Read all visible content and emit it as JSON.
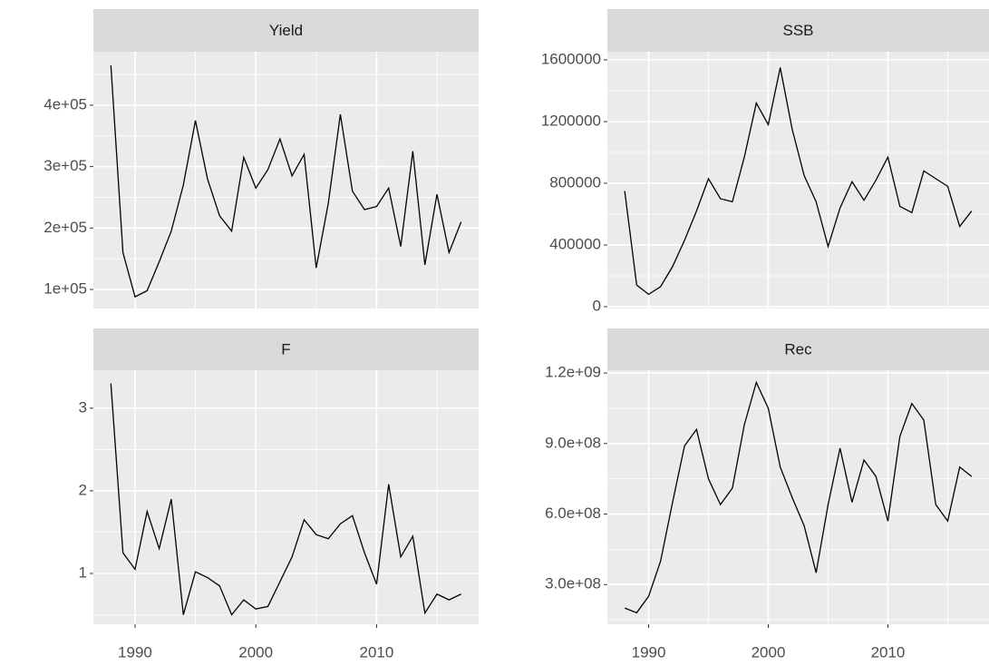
{
  "chart_data": [
    {
      "type": "line",
      "title": "Yield",
      "color": "#000000",
      "x": [
        1988,
        1989,
        1990,
        1991,
        1992,
        1993,
        1994,
        1995,
        1996,
        1997,
        1998,
        1999,
        2000,
        2001,
        2002,
        2003,
        2004,
        2005,
        2006,
        2007,
        2008,
        2009,
        2010,
        2011,
        2012,
        2013,
        2014,
        2015,
        2016,
        2017
      ],
      "values": [
        465000,
        160000,
        88000,
        98000,
        145000,
        195000,
        270000,
        375000,
        280000,
        220000,
        195000,
        315000,
        265000,
        295000,
        345000,
        285000,
        320000,
        135000,
        240000,
        385000,
        260000,
        230000,
        235000,
        265000,
        170000,
        325000,
        140000,
        255000,
        160000,
        210000
      ],
      "xlim": [
        1986.55,
        2018.45
      ],
      "xticks": [
        1990,
        2000,
        2010
      ],
      "ylim": [
        69000,
        487000
      ],
      "yticks": [
        {
          "value": 100000,
          "label": "1e+05"
        },
        {
          "value": 200000,
          "label": "2e+05"
        },
        {
          "value": 300000,
          "label": "3e+05"
        },
        {
          "value": 400000,
          "label": "4e+05"
        }
      ]
    },
    {
      "type": "line",
      "title": "SSB",
      "color": "#000000",
      "x": [
        1988,
        1989,
        1990,
        1991,
        1992,
        1993,
        1994,
        1995,
        1996,
        1997,
        1998,
        1999,
        2000,
        2001,
        2002,
        2003,
        2004,
        2005,
        2006,
        2007,
        2008,
        2009,
        2010,
        2011,
        2012,
        2013,
        2014,
        2015,
        2016,
        2017
      ],
      "values": [
        750000,
        140000,
        80000,
        130000,
        260000,
        430000,
        620000,
        830000,
        700000,
        680000,
        970000,
        1320000,
        1180000,
        1550000,
        1150000,
        850000,
        680000,
        390000,
        640000,
        810000,
        690000,
        820000,
        970000,
        650000,
        610000,
        880000,
        830000,
        780000,
        520000,
        620000
      ],
      "xlim": [
        1986.55,
        2018.45
      ],
      "xticks": [
        1990,
        2000,
        2010
      ],
      "ylim": [
        -12000,
        1653000
      ],
      "yticks": [
        0,
        400000,
        800000,
        1200000,
        1600000
      ]
    },
    {
      "type": "line",
      "title": "F",
      "color": "#000000",
      "x": [
        1988,
        1989,
        1990,
        1991,
        1992,
        1993,
        1994,
        1995,
        1996,
        1997,
        1998,
        1999,
        2000,
        2001,
        2002,
        2003,
        2004,
        2005,
        2006,
        2007,
        2008,
        2009,
        2010,
        2011,
        2012,
        2013,
        2014,
        2015,
        2016,
        2017
      ],
      "values": [
        3.3,
        1.25,
        1.05,
        1.75,
        1.3,
        1.9,
        0.5,
        1.02,
        0.95,
        0.85,
        0.5,
        0.68,
        0.57,
        0.6,
        0.9,
        1.2,
        1.65,
        1.47,
        1.42,
        1.6,
        1.7,
        1.25,
        0.87,
        2.08,
        1.2,
        1.45,
        0.52,
        0.75,
        0.68,
        0.75
      ],
      "xlim": [
        1986.55,
        2018.45
      ],
      "xticks": [
        1990,
        2000,
        2010
      ],
      "ylim": [
        0.385,
        3.46
      ],
      "yticks": [
        1,
        2,
        3
      ]
    },
    {
      "type": "line",
      "title": "Rec",
      "color": "#000000",
      "x": [
        1988,
        1989,
        1990,
        1991,
        1992,
        1993,
        1994,
        1995,
        1996,
        1997,
        1998,
        1999,
        2000,
        2001,
        2002,
        2003,
        2004,
        2005,
        2006,
        2007,
        2008,
        2009,
        2010,
        2011,
        2012,
        2013,
        2014,
        2015,
        2016,
        2017
      ],
      "values": [
        200000000,
        180000000,
        250000000,
        400000000,
        650000000,
        890000000,
        960000000,
        750000000,
        640000000,
        710000000,
        980000000,
        1160000000,
        1050000000,
        800000000,
        670000000,
        550000000,
        350000000,
        640000000,
        880000000,
        650000000,
        830000000,
        760000000,
        570000000,
        930000000,
        1070000000,
        1000000000,
        640000000,
        570000000,
        800000000,
        760000000
      ],
      "xlim": [
        1986.55,
        2018.45
      ],
      "xticks": [
        1990,
        2000,
        2010
      ],
      "ylim": [
        131000000,
        1212000000
      ],
      "yticks": [
        {
          "value": 300000000,
          "label": "3.0e+08"
        },
        {
          "value": 600000000,
          "label": "6.0e+08"
        },
        {
          "value": 900000000,
          "label": "9.0e+08"
        },
        {
          "value": 1200000000,
          "label": "1.2e+09"
        }
      ]
    }
  ]
}
